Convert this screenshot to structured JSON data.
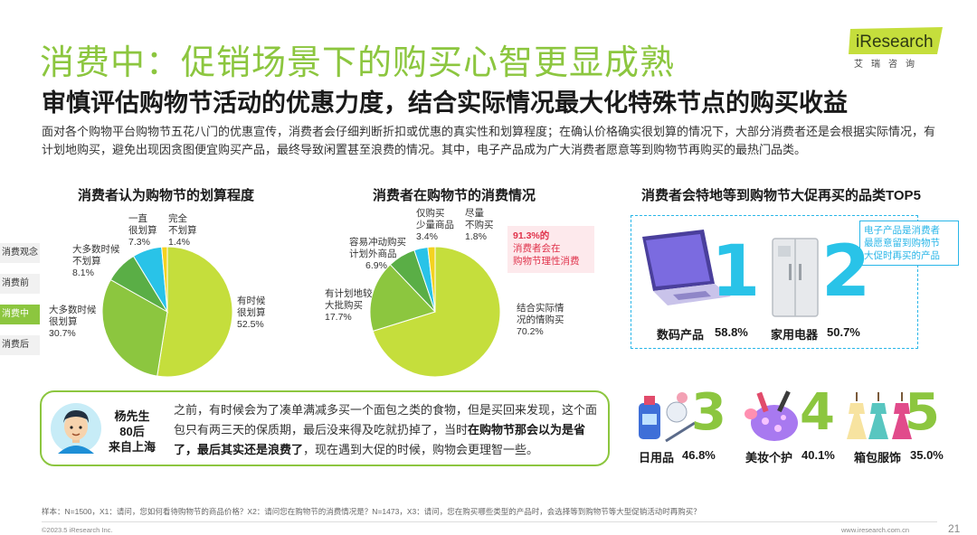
{
  "header": {
    "title": "消费中：促销场景下的购买心智更显成熟",
    "subtitle": "审慎评估购物节活动的优惠力度，结合实际情况最大化特殊节点的购买收益",
    "intro": "面对各个购物平台购物节五花八门的优惠宣传，消费者会仔细判断折扣或优惠的真实性和划算程度；在确认价格确实很划算的情况下，大部分消费者还是会根据实际情况，有计划地购买，避免出现因贪图便宜购买产品，最终导致闲置甚至浪费的情况。其中，电子产品成为广大消费者愿意等到购物节再购买的最热门品类。"
  },
  "logo": {
    "brand": "iResearch",
    "sub": "艾瑞咨询"
  },
  "side_tabs": [
    {
      "label": "消费观念",
      "active": false
    },
    {
      "label": "消费前",
      "active": false
    },
    {
      "label": "消费中",
      "active": true
    },
    {
      "label": "消费后",
      "active": false
    }
  ],
  "chart_data": [
    {
      "type": "pie",
      "title": "消费者认为购物节的划算程度",
      "slices": [
        {
          "label": "有时候\n很划算",
          "value": 52.5,
          "display": "52.5%",
          "color": "#c5de3c"
        },
        {
          "label": "大多数时候\n很划算",
          "value": 30.7,
          "display": "30.7%",
          "color": "#8cc63f"
        },
        {
          "label": "大多数时候\n不划算",
          "value": 8.1,
          "display": "8.1%",
          "color": "#5aae46"
        },
        {
          "label": "一直\n很划算",
          "value": 7.3,
          "display": "7.3%",
          "color": "#29c3e8"
        },
        {
          "label": "完全\n不划算",
          "value": 1.4,
          "display": "1.4%",
          "color": "#f4d21f"
        }
      ]
    },
    {
      "type": "pie",
      "title": "消费者在购物节的消费情况",
      "slices": [
        {
          "label": "结合实际情\n况的情购买",
          "value": 70.2,
          "display": "70.2%",
          "color": "#c5de3c"
        },
        {
          "label": "有计划地较\n大批购买",
          "value": 17.7,
          "display": "17.7%",
          "color": "#8cc63f"
        },
        {
          "label": "容易冲动购买\n计划外商品",
          "value": 6.9,
          "display": "6.9%",
          "color": "#5aae46"
        },
        {
          "label": "仅购买\n少量商品",
          "value": 3.4,
          "display": "3.4%",
          "color": "#29c3e8"
        },
        {
          "label": "尽量\n不购买",
          "value": 1.8,
          "display": "1.8%",
          "color": "#f4d21f"
        }
      ]
    }
  ],
  "callout": {
    "highlight": "91.3%的",
    "text": "消费者会在\n购物节理性消费"
  },
  "top5": {
    "title": "消费者会特地等到购物节大促再买的品类TOP5",
    "note": "电子产品是消费者\n最愿意留到购物节\n大促时再买的产品",
    "items": [
      {
        "rank": "1",
        "name": "数码产品",
        "pct": "58.8%",
        "icon": "laptop-icon"
      },
      {
        "rank": "2",
        "name": "家用电器",
        "pct": "50.7%",
        "icon": "fridge-icon"
      },
      {
        "rank": "3",
        "name": "日用品",
        "pct": "46.8%",
        "icon": "daily-goods-icon"
      },
      {
        "rank": "4",
        "name": "美妆个护",
        "pct": "40.1%",
        "icon": "cosmetics-icon"
      },
      {
        "rank": "5",
        "name": "箱包服饰",
        "pct": "35.0%",
        "icon": "dress-icon"
      }
    ]
  },
  "quote": {
    "person": "杨先生\n80后\n来自上海",
    "text_a": "之前，有时候会为了凑单满减多买一个面包之类的食物，但是买回来发现，这个面包只有两三天的保质期，最后没来得及吃就扔掉了，当时",
    "text_b": "在购物节那会以为是省了，最后其实还是浪费了",
    "text_c": "，现在遇到大促的时候，购物会更理智一些。"
  },
  "footer": {
    "note": "样本：N=1500，X1：请问，您如何看待购物节的商品价格？X2：请问您在购物节的消费情况是？N=1473，X3：请问，您在购买哪些类型的产品时，会选择等到购物节等大型促销活动时再购买？",
    "copyright": "©2023.5 iResearch Inc.",
    "site": "www.iresearch.com.cn",
    "page": "21"
  }
}
